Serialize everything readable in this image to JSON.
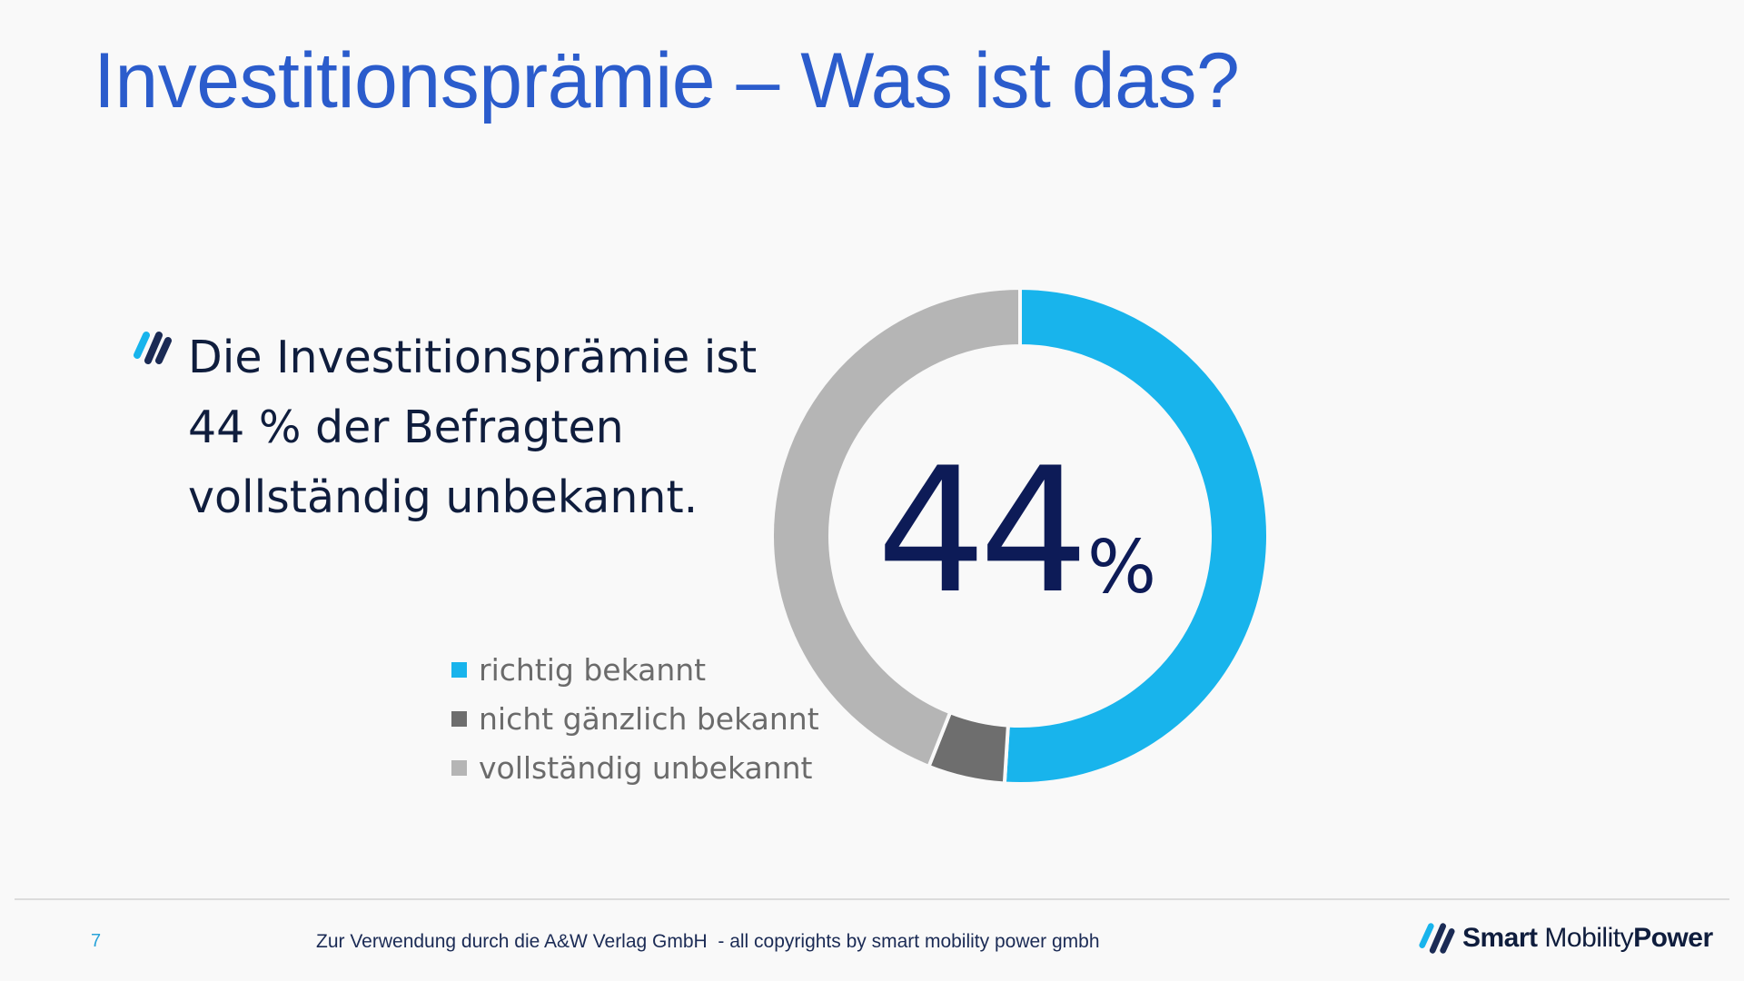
{
  "slide": {
    "title": "Investitionsprämie – Was ist das?",
    "bullet_lines": [
      "Die Investitionsprämie ist",
      "44 % der Befragten",
      "vollständig unbekannt."
    ],
    "big_number": "44",
    "big_number_unit": "%"
  },
  "chart_data": {
    "type": "pie",
    "donut": true,
    "categories": [
      "richtig bekannt",
      "nicht gänzlich bekannt",
      "vollständig unbekannt"
    ],
    "values": [
      51,
      5,
      44
    ],
    "unit": "%",
    "colors": [
      "#18b4ec",
      "#6e6e6e",
      "#b5b5b5"
    ],
    "legend_position": "left-bottom",
    "start_angle": "top, clockwise"
  },
  "footer": {
    "page_number": "7",
    "copyright": "Zur Verwendung durch die A&W Verlag GmbH  - all copyrights by smart mobility power gmbh"
  },
  "logo": {
    "word1": "Smart",
    "word2": "Mobility",
    "word3": "Power",
    "icon": "double-slash-logo-icon"
  },
  "colors": {
    "title": "#2b5ccc",
    "text_dark": "#0f1d3d",
    "big_number": "#0d1b57",
    "accent_blue": "#18b4ec"
  }
}
